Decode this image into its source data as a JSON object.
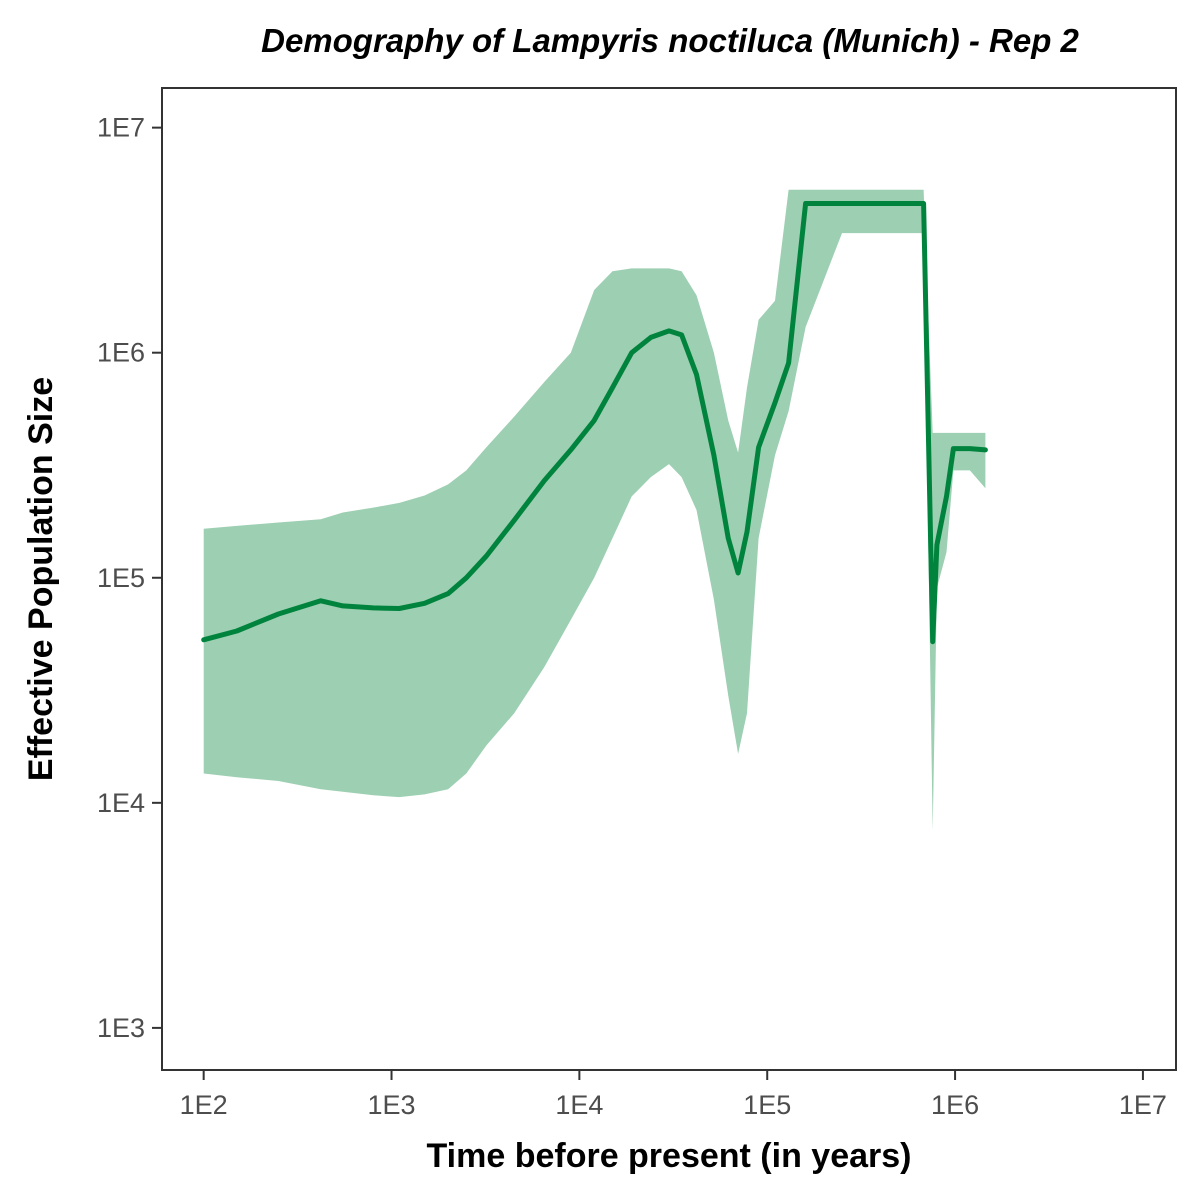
{
  "chart_data": {
    "type": "area",
    "title": "Demography of Lampyris noctiluca (Munich) - Rep 2",
    "xlabel": "Time before present (in years)",
    "ylabel": "Effective Population Size",
    "x_scale": "log10",
    "y_scale": "log10",
    "xlim": [
      60,
      15000000
    ],
    "ylim": [
      650,
      15000000
    ],
    "x_ticks": [
      100,
      1000,
      10000,
      100000,
      1000000,
      10000000
    ],
    "x_tick_labels": [
      "1E2",
      "1E3",
      "1E4",
      "1E5",
      "1E6",
      "1E7"
    ],
    "y_ticks": [
      1000,
      10000,
      100000,
      1000000,
      10000000
    ],
    "y_tick_labels": [
      "1E3",
      "1E4",
      "1E5",
      "1E6",
      "1E7"
    ],
    "grid": false,
    "line_color": "#00843d",
    "band_color": "#9dcfb2",
    "series": [
      {
        "values": [
          {
            "x": 100,
            "y": 53000,
            "lower": 13500,
            "upper": 165000
          },
          {
            "x": 150,
            "y": 58000,
            "lower": 13000,
            "upper": 170000
          },
          {
            "x": 250,
            "y": 69000,
            "lower": 12500,
            "upper": 176000
          },
          {
            "x": 420,
            "y": 79000,
            "lower": 11500,
            "upper": 182000
          },
          {
            "x": 550,
            "y": 75000,
            "lower": 11200,
            "upper": 195000
          },
          {
            "x": 800,
            "y": 73500,
            "lower": 10800,
            "upper": 205000
          },
          {
            "x": 1100,
            "y": 73000,
            "lower": 10600,
            "upper": 215000
          },
          {
            "x": 1500,
            "y": 77000,
            "lower": 10900,
            "upper": 232000
          },
          {
            "x": 2000,
            "y": 85000,
            "lower": 11500,
            "upper": 260000
          },
          {
            "x": 2500,
            "y": 100000,
            "lower": 13500,
            "upper": 300000
          },
          {
            "x": 3200,
            "y": 125000,
            "lower": 18000,
            "upper": 380000
          },
          {
            "x": 4500,
            "y": 180000,
            "lower": 25000,
            "upper": 520000
          },
          {
            "x": 6500,
            "y": 270000,
            "lower": 40000,
            "upper": 740000
          },
          {
            "x": 9000,
            "y": 370000,
            "lower": 65000,
            "upper": 1000000
          },
          {
            "x": 12000,
            "y": 500000,
            "lower": 100000,
            "upper": 1900000
          },
          {
            "x": 15000,
            "y": 700000,
            "lower": 150000,
            "upper": 2300000
          },
          {
            "x": 19000,
            "y": 1000000,
            "lower": 230000,
            "upper": 2370000
          },
          {
            "x": 24000,
            "y": 1170000,
            "lower": 280000,
            "upper": 2370000
          },
          {
            "x": 30000,
            "y": 1250000,
            "lower": 320000,
            "upper": 2370000
          },
          {
            "x": 35000,
            "y": 1200000,
            "lower": 280000,
            "upper": 2300000
          },
          {
            "x": 42000,
            "y": 800000,
            "lower": 200000,
            "upper": 1800000
          },
          {
            "x": 52000,
            "y": 350000,
            "lower": 80000,
            "upper": 1000000
          },
          {
            "x": 62000,
            "y": 150000,
            "lower": 30000,
            "upper": 500000
          },
          {
            "x": 70000,
            "y": 105000,
            "lower": 16500,
            "upper": 360000
          },
          {
            "x": 78000,
            "y": 160000,
            "lower": 25000,
            "upper": 700000
          },
          {
            "x": 90000,
            "y": 380000,
            "lower": 150000,
            "upper": 1400000
          },
          {
            "x": 110000,
            "y": 600000,
            "lower": 350000,
            "upper": 1700000
          },
          {
            "x": 130000,
            "y": 900000,
            "lower": 550000,
            "upper": 5300000
          },
          {
            "x": 160000,
            "y": 4600000,
            "lower": 1300000,
            "upper": 5300000
          },
          {
            "x": 250000,
            "y": 4600000,
            "lower": 3400000,
            "upper": 5300000
          },
          {
            "x": 500000,
            "y": 4600000,
            "lower": 3400000,
            "upper": 5300000
          },
          {
            "x": 680000,
            "y": 4600000,
            "lower": 3400000,
            "upper": 5300000
          },
          {
            "x": 760000,
            "y": 52000,
            "lower": 7500,
            "upper": 440000
          },
          {
            "x": 800000,
            "y": 140000,
            "lower": 90000,
            "upper": 440000
          },
          {
            "x": 900000,
            "y": 230000,
            "lower": 130000,
            "upper": 440000
          },
          {
            "x": 980000,
            "y": 375000,
            "lower": 300000,
            "upper": 440000
          },
          {
            "x": 1200000,
            "y": 375000,
            "lower": 300000,
            "upper": 440000
          },
          {
            "x": 1450000,
            "y": 370000,
            "lower": 250000,
            "upper": 440000
          }
        ]
      }
    ]
  }
}
